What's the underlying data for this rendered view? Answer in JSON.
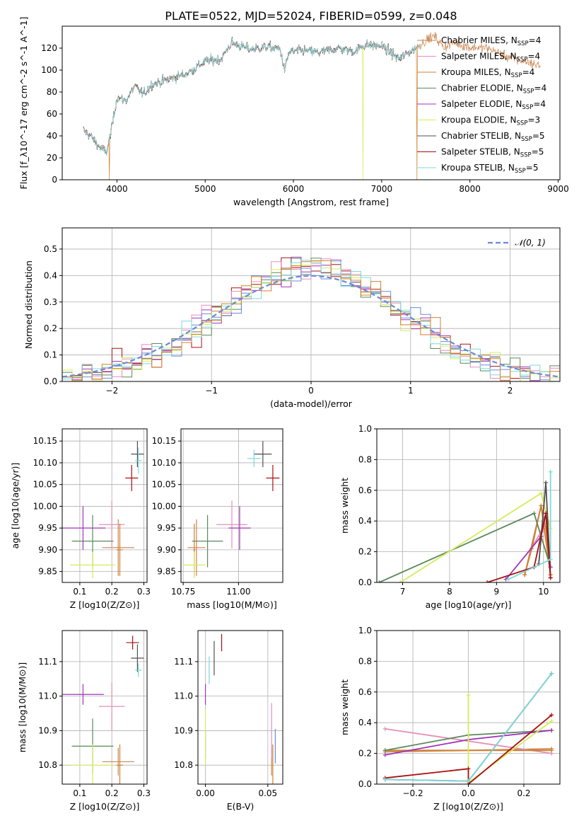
{
  "figure_title": "PLATE=0522, MJD=52024, FIBERID=0599, z=0.048",
  "chart_data": [
    {
      "type": "line",
      "id": "spectrum",
      "xlabel": "wavelength [Angstrom, rest frame]",
      "ylabel": "Flux [f_λ10^-17 erg cm^-2 s^-1 A^-1]",
      "xlim": [
        3380,
        9020
      ],
      "ylim": [
        0,
        140
      ],
      "xticks": [
        4000,
        5000,
        6000,
        7000,
        8000,
        9000
      ],
      "yticks": [
        0,
        20,
        40,
        60,
        80,
        100,
        120
      ],
      "legend_position": "right",
      "grid": false,
      "spectrum_anchors": [
        [
          3620,
          45
        ],
        [
          3700,
          40
        ],
        [
          3800,
          30
        ],
        [
          3880,
          25
        ],
        [
          3930,
          42
        ],
        [
          4000,
          75
        ],
        [
          4100,
          72
        ],
        [
          4200,
          85
        ],
        [
          4300,
          78
        ],
        [
          4400,
          87
        ],
        [
          4600,
          92
        ],
        [
          4800,
          97
        ],
        [
          5000,
          108
        ],
        [
          5180,
          110
        ],
        [
          5300,
          125
        ],
        [
          5500,
          119
        ],
        [
          5700,
          121
        ],
        [
          5850,
          119
        ],
        [
          5900,
          100
        ],
        [
          5950,
          116
        ],
        [
          6100,
          118
        ],
        [
          6300,
          116
        ],
        [
          6500,
          120
        ],
        [
          6700,
          117
        ],
        [
          6800,
          123
        ],
        [
          7000,
          122
        ],
        [
          7200,
          110
        ],
        [
          7400,
          121
        ],
        [
          7500,
          127
        ],
        [
          7600,
          131
        ],
        [
          7700,
          121
        ],
        [
          7800,
          125
        ],
        [
          8000,
          121
        ],
        [
          8200,
          120
        ],
        [
          8400,
          113
        ],
        [
          8600,
          108
        ],
        [
          8800,
          104
        ]
      ],
      "model_drops": [
        {
          "series": "Kroupa MILES",
          "x": 3915
        },
        {
          "series": "Kroupa ELODIE",
          "x": 6790
        },
        {
          "series": "Kroupa MILES",
          "x": 7400
        }
      ],
      "series": [
        {
          "name": "Chabrier MILES",
          "sub": "SSP",
          "n": "4",
          "color": "#c8844e"
        },
        {
          "name": "Salpeter MILES",
          "sub": "SSP",
          "n": "4",
          "color": "#e58fb8"
        },
        {
          "name": "Kroupa MILES",
          "sub": "SSP",
          "n": "4",
          "color": "#d0802e"
        },
        {
          "name": "Chabrier ELODIE",
          "sub": "SSP",
          "n": "4",
          "color": "#5a8a5a"
        },
        {
          "name": "Salpeter ELODIE",
          "sub": "SSP",
          "n": "4",
          "color": "#a034b8"
        },
        {
          "name": "Kroupa ELODIE",
          "sub": "SSP",
          "n": "3",
          "color": "#d4ec5a"
        },
        {
          "name": "Chabrier STELIB",
          "sub": "SSP",
          "n": "5",
          "color": "#505050"
        },
        {
          "name": "Salpeter STELIB",
          "sub": "SSP",
          "n": "5",
          "color": "#a81010"
        },
        {
          "name": "Kroupa STELIB",
          "sub": "SSP",
          "n": "5",
          "color": "#7ed8dc"
        }
      ]
    },
    {
      "type": "bar",
      "id": "residual-histogram",
      "xlabel": "(data-model)/error",
      "ylabel": "Normed distribution",
      "xlim": [
        -2.5,
        2.5
      ],
      "ylim": [
        0,
        0.58
      ],
      "xticks": [
        -2,
        -1,
        0,
        1,
        2
      ],
      "yticks": [
        0.0,
        0.1,
        0.2,
        0.3,
        0.4,
        0.5
      ],
      "grid": true,
      "bin_width": 0.1,
      "reference_curve": {
        "name": "𝒩(0, 1)",
        "mean": 0,
        "sigma": 1,
        "color": "#6a8ad8",
        "dashed": true
      },
      "legend_position": "top-right",
      "histogram_colors": [
        "#a81010",
        "#a034b8",
        "#5a8a5a",
        "#e58fb8",
        "#6a8ad8",
        "#d4ec5a",
        "#7ed8dc",
        "#d0802e"
      ]
    },
    {
      "type": "scatter",
      "id": "age-vs-Z",
      "xlabel": "Z [log10(Z/Z⊙)]",
      "ylabel": "age  [log10(age/yr)]",
      "xlim": [
        0.045,
        0.31
      ],
      "ylim": [
        9.825,
        10.178
      ],
      "xticks": [
        0.1,
        0.2,
        0.3
      ],
      "yticks": [
        9.85,
        9.9,
        9.95,
        10.0,
        10.05,
        10.1,
        10.15
      ],
      "grid": true,
      "points": [
        {
          "series": "Chabrier MILES",
          "x": 0.22,
          "xerr": 0.05,
          "y": 9.905,
          "yerr": 0.065
        },
        {
          "series": "Salpeter MILES",
          "x": 0.2,
          "xerr": 0.04,
          "y": 9.958,
          "yerr": 0.055
        },
        {
          "series": "Kroupa MILES",
          "x": 0.225,
          "xerr": 0.01,
          "y": 9.9,
          "yerr": 0.06
        },
        {
          "series": "Chabrier ELODIE",
          "x": 0.14,
          "xerr": 0.065,
          "y": 9.92,
          "yerr": 0.06
        },
        {
          "series": "Salpeter ELODIE",
          "x": 0.11,
          "xerr": 0.07,
          "y": 9.95,
          "yerr": 0.05
        },
        {
          "series": "Kroupa ELODIE",
          "x": 0.14,
          "xerr": 0.07,
          "y": 9.865,
          "yerr": 0.03
        },
        {
          "series": "Chabrier STELIB",
          "x": 0.28,
          "xerr": 0.02,
          "y": 10.12,
          "yerr": 0.03
        },
        {
          "series": "Salpeter STELIB",
          "x": 0.262,
          "xerr": 0.02,
          "y": 10.065,
          "yerr": 0.03
        },
        {
          "series": "Kroupa STELIB",
          "x": 0.283,
          "xerr": 0.01,
          "y": 10.105,
          "yerr": 0.03
        }
      ]
    },
    {
      "type": "scatter",
      "id": "age-vs-mass",
      "xlabel": "mass [log10(M/M⊙)]",
      "ylabel": "",
      "xlim": [
        10.74,
        11.2
      ],
      "ylim": [
        9.825,
        10.178
      ],
      "xticks": [
        10.75,
        11.0
      ],
      "yticks": [
        9.85,
        9.9,
        9.95,
        10.0,
        10.05,
        10.1,
        10.15
      ],
      "grid": true,
      "points": [
        {
          "series": "Chabrier MILES",
          "x": 10.81,
          "xerr": 0.04,
          "y": 9.905,
          "yerr": 0.065
        },
        {
          "series": "Salpeter MILES",
          "x": 10.97,
          "xerr": 0.07,
          "y": 9.958,
          "yerr": 0.055
        },
        {
          "series": "Kroupa MILES",
          "x": 10.8,
          "xerr": 0.005,
          "y": 9.9,
          "yerr": 0.06
        },
        {
          "series": "Chabrier ELODIE",
          "x": 10.86,
          "xerr": 0.07,
          "y": 9.92,
          "yerr": 0.06
        },
        {
          "series": "Salpeter ELODIE",
          "x": 11.005,
          "xerr": 0.05,
          "y": 9.95,
          "yerr": 0.05
        },
        {
          "series": "Kroupa ELODIE",
          "x": 10.8,
          "xerr": 0.05,
          "y": 9.865,
          "yerr": 0.03
        },
        {
          "series": "Chabrier STELIB",
          "x": 11.11,
          "xerr": 0.04,
          "y": 10.12,
          "yerr": 0.03
        },
        {
          "series": "Salpeter STELIB",
          "x": 11.155,
          "xerr": 0.03,
          "y": 10.065,
          "yerr": 0.03
        },
        {
          "series": "Kroupa STELIB",
          "x": 11.07,
          "xerr": 0.03,
          "y": 10.11,
          "yerr": 0.02
        }
      ]
    },
    {
      "type": "line",
      "id": "mass-weight-vs-age",
      "xlabel": "age  [log10(age/yr)]",
      "ylabel": "mass weight",
      "xlim": [
        6.45,
        10.35
      ],
      "ylim": [
        0,
        1
      ],
      "xticks": [
        7,
        8,
        9,
        10
      ],
      "yticks": [
        0.0,
        0.2,
        0.4,
        0.6,
        0.8,
        1.0
      ],
      "grid": true,
      "series": [
        {
          "name": "Chabrier MILES",
          "x": [
            9.6,
            9.95,
            10.05,
            10.15
          ],
          "y": [
            0.05,
            0.5,
            0.35,
            0.05
          ]
        },
        {
          "name": "Salpeter MILES",
          "x": [
            9.7,
            9.95,
            10.05,
            10.15
          ],
          "y": [
            0.2,
            0.33,
            0.45,
            0.05
          ]
        },
        {
          "name": "Kroupa MILES",
          "x": [
            9.6,
            9.75,
            9.95,
            10.15
          ],
          "y": [
            0.05,
            0.22,
            0.5,
            0.05
          ]
        },
        {
          "name": "Chabrier ELODIE",
          "x": [
            6.5,
            9.8,
            10.15
          ],
          "y": [
            0.0,
            0.45,
            0.1
          ]
        },
        {
          "name": "Salpeter ELODIE",
          "x": [
            9.2,
            9.95,
            10.05,
            10.15
          ],
          "y": [
            0.02,
            0.3,
            0.45,
            0.1
          ]
        },
        {
          "name": "Kroupa ELODIE",
          "x": [
            6.95,
            9.95,
            10.15
          ],
          "y": [
            0.0,
            0.58,
            0.35
          ]
        },
        {
          "name": "Chabrier STELIB",
          "x": [
            9.9,
            10.05,
            10.15
          ],
          "y": [
            0.12,
            0.65,
            0.03
          ]
        },
        {
          "name": "Salpeter STELIB",
          "x": [
            8.8,
            9.8,
            10.05,
            10.15
          ],
          "y": [
            0.0,
            0.1,
            0.45,
            0.03
          ]
        },
        {
          "name": "Kroupa STELIB",
          "x": [
            9.25,
            10.15,
            10.15
          ],
          "y": [
            0.02,
            0.15,
            0.72
          ]
        }
      ]
    },
    {
      "type": "scatter",
      "id": "mass-vs-Z",
      "xlabel": "Z [log10(Z/Z⊙)]",
      "ylabel": "mass [log10(M/M⊙)]",
      "xlim": [
        0.045,
        0.31
      ],
      "ylim": [
        10.745,
        11.19
      ],
      "xticks": [
        0.1,
        0.2,
        0.3
      ],
      "yticks": [
        10.8,
        10.9,
        11.0,
        11.1
      ],
      "grid": true,
      "points": [
        {
          "series": "Chabrier MILES",
          "x": 0.22,
          "xerr": 0.05,
          "y": 10.81,
          "yerr": 0.04
        },
        {
          "series": "Salpeter MILES",
          "x": 0.2,
          "xerr": 0.04,
          "y": 10.97,
          "yerr": 0.07
        },
        {
          "series": "Kroupa MILES",
          "x": 0.225,
          "xerr": 0.01,
          "y": 10.8,
          "yerr": 0.06
        },
        {
          "series": "Chabrier ELODIE",
          "x": 0.14,
          "xerr": 0.065,
          "y": 10.855,
          "yerr": 0.08
        },
        {
          "series": "Salpeter ELODIE",
          "x": 0.11,
          "xerr": 0.065,
          "y": 11.005,
          "yerr": 0.03
        },
        {
          "series": "Kroupa ELODIE",
          "x": 0.14,
          "xerr": 0.07,
          "y": 10.8,
          "yerr": 0.06
        },
        {
          "series": "Chabrier STELIB",
          "x": 0.28,
          "xerr": 0.02,
          "y": 11.11,
          "yerr": 0.04
        },
        {
          "series": "Salpeter STELIB",
          "x": 0.265,
          "xerr": 0.02,
          "y": 11.155,
          "yerr": 0.02
        },
        {
          "series": "Kroupa STELIB",
          "x": 0.283,
          "xerr": 0.01,
          "y": 11.075,
          "yerr": 0.02
        }
      ]
    },
    {
      "type": "scatter",
      "id": "mass-vs-EBV",
      "xlabel": "E(B-V)",
      "ylabel": "",
      "xlim": [
        -0.006,
        0.062
      ],
      "ylim": [
        10.745,
        11.19
      ],
      "xticks": [
        0.0,
        0.05
      ],
      "yticks": [
        10.8,
        10.9,
        11.0,
        11.1
      ],
      "grid": true,
      "points": [
        {
          "series": "Chabrier MILES",
          "x": 0.053,
          "y": 10.81,
          "yerr": 0.04
        },
        {
          "series": "Salpeter MILES",
          "x": 0.053,
          "y": 10.9,
          "yerr": 0.08
        },
        {
          "series": "Kroupa MILES",
          "x": 0.054,
          "y": 10.8,
          "yerr": 0.06
        },
        {
          "series": "Chabrier ELODIE",
          "x": 0.0,
          "y": 10.86,
          "yerr": 0.04
        },
        {
          "series": "Salpeter ELODIE",
          "x": 0.0,
          "y": 11.005,
          "yerr": 0.03
        },
        {
          "series": "Kroupa ELODIE",
          "x": 0.0,
          "y": 10.88,
          "yerr": 0.08
        },
        {
          "series": "Chabrier STELIB",
          "x": 0.007,
          "y": 11.11,
          "yerr": 0.05
        },
        {
          "series": "Salpeter STELIB",
          "x": 0.013,
          "y": 11.155,
          "yerr": 0.025
        },
        {
          "series": "Kroupa STELIB",
          "x": 0.003,
          "y": 11.075,
          "yerr": 0.04
        },
        {
          "series": "",
          "x": 0.056,
          "y": 10.855,
          "yerr": 0.05,
          "color": "#6a8ad8"
        }
      ]
    },
    {
      "type": "line",
      "id": "mass-weight-vs-Z",
      "xlabel": "Z [log10(Z/Z⊙)]",
      "ylabel": "mass weight",
      "xlim": [
        -0.33,
        0.33
      ],
      "ylim": [
        0,
        1
      ],
      "xticks": [
        -0.2,
        0.0,
        0.2
      ],
      "yticks": [
        0.0,
        0.2,
        0.4,
        0.6,
        0.8,
        1.0
      ],
      "grid": true,
      "series": [
        {
          "name": "Chabrier MILES",
          "x": [
            -0.3,
            0.0,
            0.3
          ],
          "y": [
            0.21,
            0.22,
            0.23
          ]
        },
        {
          "name": "Salpeter MILES",
          "x": [
            -0.3,
            0.3
          ],
          "y": [
            0.36,
            0.2
          ]
        },
        {
          "name": "Kroupa MILES",
          "x": [
            -0.3,
            0.0,
            0.3
          ],
          "y": [
            0.22,
            0.22,
            0.22
          ]
        },
        {
          "name": "Chabrier ELODIE",
          "x": [
            -0.3,
            0.0,
            0.3
          ],
          "y": [
            0.22,
            0.32,
            0.35
          ]
        },
        {
          "name": "Salpeter ELODIE",
          "x": [
            -0.3,
            0.0,
            0.3
          ],
          "y": [
            0.19,
            0.29,
            0.35
          ]
        },
        {
          "name": "Kroupa ELODIE",
          "x": [
            0.0,
            0.0,
            0.3
          ],
          "y": [
            0.58,
            0.01,
            0.41
          ]
        },
        {
          "name": "Chabrier STELIB",
          "x": [
            -0.3,
            0.0,
            0.3
          ],
          "y": [
            0.03,
            0.02,
            0.72
          ]
        },
        {
          "name": "Salpeter STELIB",
          "x": [
            -0.3,
            0.0,
            0.0,
            0.3
          ],
          "y": [
            0.04,
            0.1,
            0.0,
            0.45
          ]
        },
        {
          "name": "Kroupa STELIB",
          "x": [
            -0.3,
            0.0,
            0.3
          ],
          "y": [
            0.03,
            0.02,
            0.72
          ]
        }
      ]
    }
  ]
}
